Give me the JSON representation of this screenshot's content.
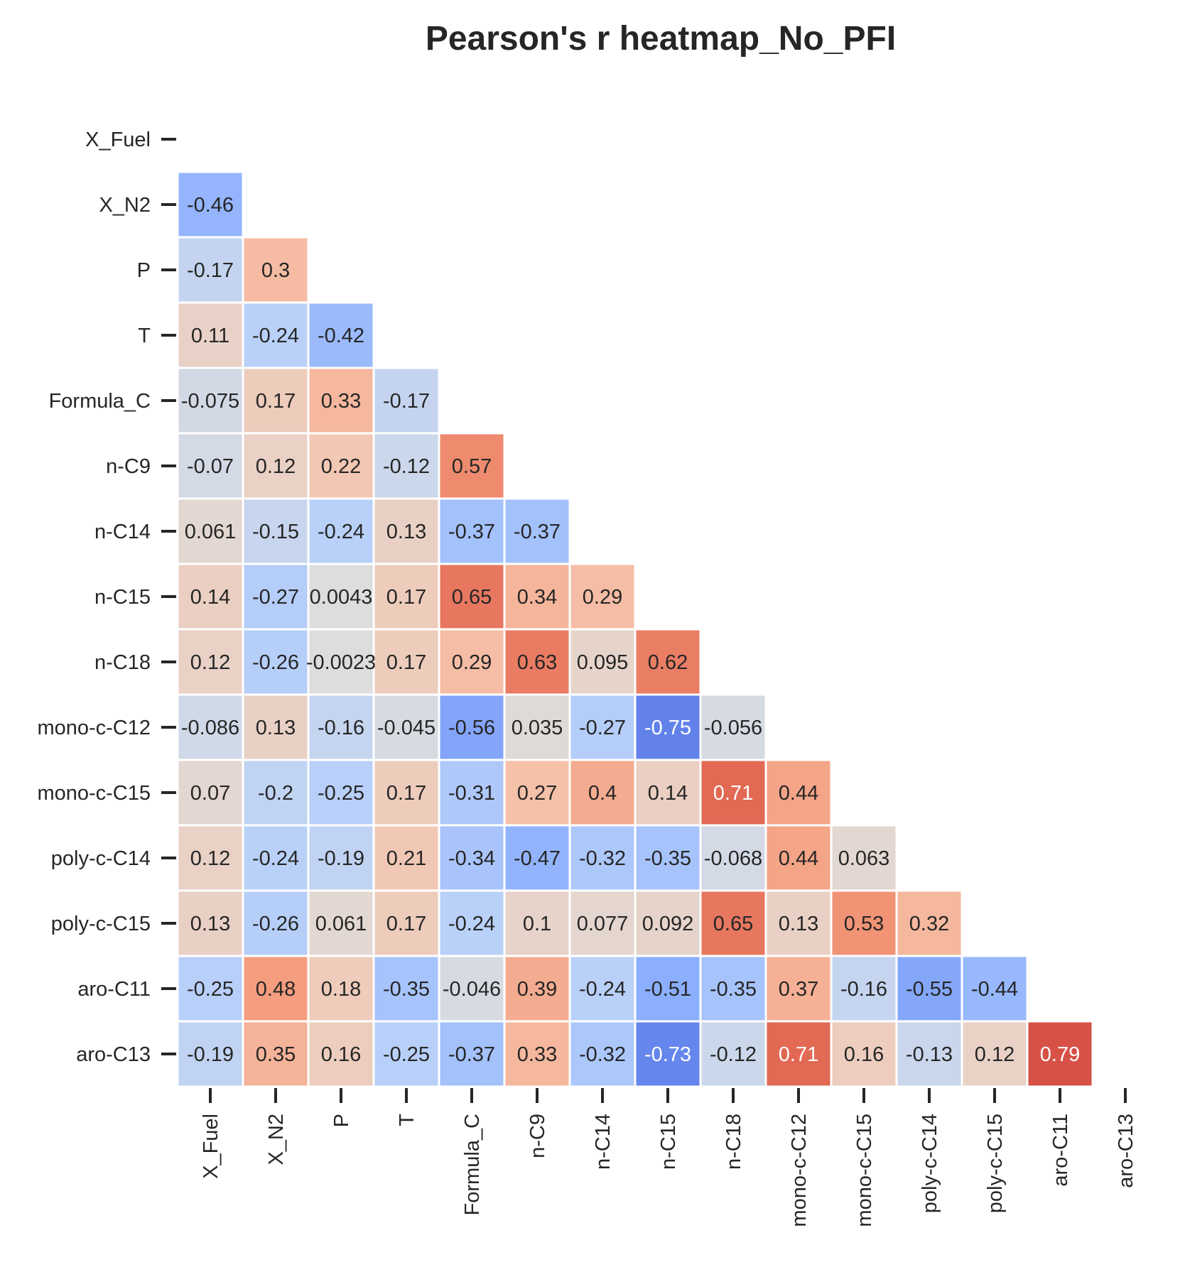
{
  "chart_data": {
    "type": "heatmap",
    "title": "Pearson's r heatmap_No_PFI",
    "xlabel": "",
    "ylabel": "",
    "variables": [
      "X_Fuel",
      "X_N2",
      "P",
      "T",
      "Formula_C",
      "n-C9",
      "n-C14",
      "n-C15",
      "n-C18",
      "mono-c-C12",
      "mono-c-C15",
      "poly-c-C14",
      "poly-c-C15",
      "aro-C11",
      "aro-C13"
    ],
    "mask": "upper triangle incl. diagonal",
    "colormap": "coolwarm",
    "vmin": -1,
    "vmax": 1,
    "colorbar": false,
    "grid": false,
    "values": [
      [],
      [
        -0.46
      ],
      [
        -0.17,
        0.3
      ],
      [
        0.11,
        -0.24,
        -0.42
      ],
      [
        -0.075,
        0.17,
        0.33,
        -0.17
      ],
      [
        -0.07,
        0.12,
        0.22,
        -0.12,
        0.57
      ],
      [
        0.061,
        -0.15,
        -0.24,
        0.13,
        -0.37,
        -0.37
      ],
      [
        0.14,
        -0.27,
        0.0043,
        0.17,
        0.65,
        0.34,
        0.29
      ],
      [
        0.12,
        -0.26,
        -0.0023,
        0.17,
        0.29,
        0.63,
        0.095,
        0.62
      ],
      [
        -0.086,
        0.13,
        -0.16,
        -0.045,
        -0.56,
        0.035,
        -0.27,
        -0.75,
        -0.056
      ],
      [
        0.07,
        -0.2,
        -0.25,
        0.17,
        -0.31,
        0.27,
        0.4,
        0.14,
        0.71,
        0.44
      ],
      [
        0.12,
        -0.24,
        -0.19,
        0.21,
        -0.34,
        -0.47,
        -0.32,
        -0.35,
        -0.068,
        0.44,
        0.063
      ],
      [
        0.13,
        -0.26,
        0.061,
        0.17,
        -0.24,
        0.1,
        0.077,
        0.092,
        0.65,
        0.13,
        0.53,
        0.32
      ],
      [
        -0.25,
        0.48,
        0.18,
        -0.35,
        -0.046,
        0.39,
        -0.24,
        -0.51,
        -0.35,
        0.37,
        -0.16,
        -0.55,
        -0.44
      ],
      [
        -0.19,
        0.35,
        0.16,
        -0.25,
        -0.37,
        0.33,
        -0.32,
        -0.73,
        -0.12,
        0.71,
        0.16,
        -0.13,
        0.12,
        0.79
      ]
    ]
  }
}
